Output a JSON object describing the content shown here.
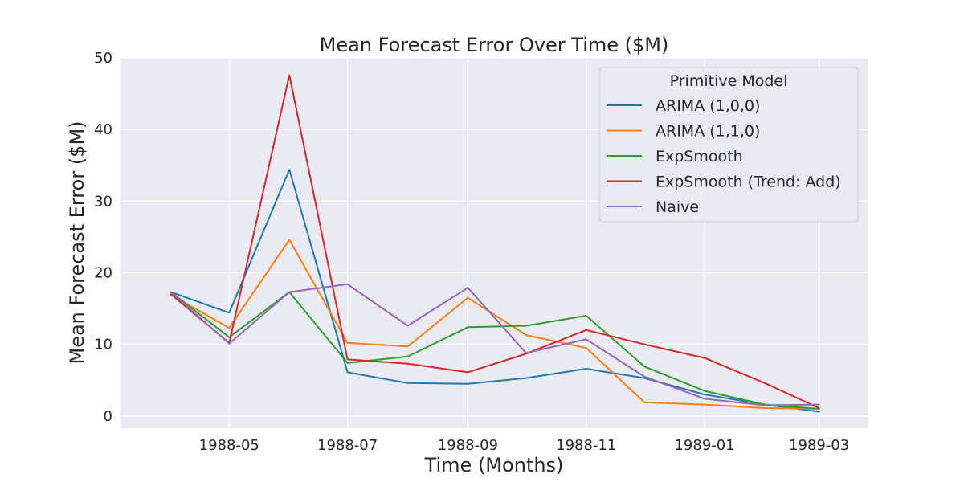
{
  "chart_data": {
    "type": "line",
    "title": "Mean Forecast Error Over Time ($M)",
    "xlabel": "Time (Months)",
    "ylabel": "Mean Forecast Error ($M)",
    "x": [
      "1988-04",
      "1988-05",
      "1988-06",
      "1988-07",
      "1988-08",
      "1988-09",
      "1988-10",
      "1988-11",
      "1988-12",
      "1989-01",
      "1989-02",
      "1989-03"
    ],
    "x_ticks": [
      "1988-05",
      "1988-07",
      "1988-09",
      "1988-11",
      "1989-01",
      "1989-03"
    ],
    "y_ticks": [
      0,
      10,
      20,
      30,
      40,
      50
    ],
    "ylim": [
      -1.7,
      50
    ],
    "xlim": [
      "1988-03-06",
      "1989-03-26"
    ],
    "grid": true,
    "legend": {
      "title": "Primitive Model",
      "placement": "top-right"
    },
    "series": [
      {
        "name": "ARIMA (1,0,0)",
        "color": "#1f77b4",
        "values": [
          17.3,
          14.4,
          34.4,
          6.1,
          4.6,
          4.5,
          5.3,
          6.6,
          5.3,
          3.0,
          1.6,
          0.6
        ]
      },
      {
        "name": "ARIMA (1,1,0)",
        "color": "#ff7f0e",
        "values": [
          16.9,
          12.3,
          24.6,
          10.2,
          9.7,
          16.5,
          11.3,
          9.5,
          1.9,
          1.6,
          1.1,
          1.0
        ]
      },
      {
        "name": "ExpSmooth",
        "color": "#2ca02c",
        "values": [
          17.3,
          11.0,
          17.3,
          7.4,
          8.3,
          12.4,
          12.6,
          14.0,
          6.9,
          3.5,
          1.6,
          1.0
        ]
      },
      {
        "name": "ExpSmooth (Trend: Add)",
        "color": "#d62728",
        "values": [
          17.0,
          10.2,
          47.6,
          7.9,
          7.3,
          6.1,
          8.7,
          12.0,
          10.0,
          8.1,
          4.6,
          1.1
        ]
      },
      {
        "name": "Naive",
        "color": "#9467bd",
        "values": [
          17.3,
          10.1,
          17.3,
          18.4,
          12.6,
          17.9,
          8.8,
          10.7,
          5.5,
          2.4,
          1.5,
          1.6
        ]
      }
    ]
  }
}
